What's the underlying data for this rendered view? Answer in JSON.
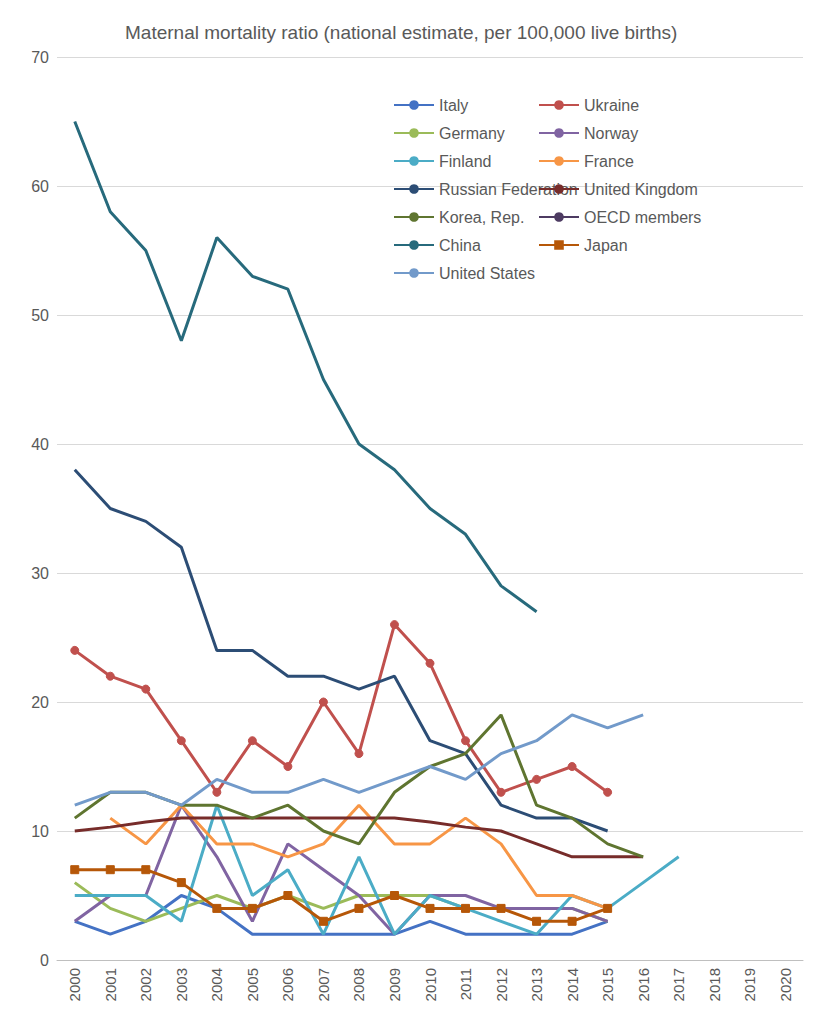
{
  "chart_data": {
    "type": "line",
    "title": "Maternal mortality ratio (national estimate, per 100,000 live births)",
    "categories": [
      "2000",
      "2001",
      "2002",
      "2003",
      "2004",
      "2005",
      "2006",
      "2007",
      "2008",
      "2009",
      "2010",
      "2011",
      "2012",
      "2013",
      "2014",
      "2015",
      "2016",
      "2017",
      "2018",
      "2019",
      "2020"
    ],
    "ylim": [
      0,
      70
    ],
    "yticks": [
      0,
      10,
      20,
      30,
      40,
      50,
      60,
      70
    ],
    "grid": true,
    "legend": "upper right",
    "series": [
      {
        "name": "Italy",
        "color": "#4472C4",
        "values": [
          3,
          2,
          3,
          5,
          4,
          2,
          2,
          2,
          2,
          2,
          3,
          2,
          2,
          2,
          2,
          3,
          null,
          null,
          null,
          null,
          null
        ]
      },
      {
        "name": "Ukraine",
        "color": "#C0504D",
        "marker": "circle",
        "values": [
          24,
          22,
          21,
          17,
          13,
          17,
          15,
          20,
          16,
          26,
          23,
          17,
          13,
          14,
          15,
          13,
          null,
          null,
          null,
          null,
          null
        ]
      },
      {
        "name": "Germany",
        "color": "#9BBB59",
        "values": [
          6,
          4,
          3,
          4,
          5,
          4,
          5,
          4,
          5,
          5,
          5,
          4,
          4,
          4,
          4,
          3,
          null,
          null,
          null,
          null,
          null
        ]
      },
      {
        "name": "Norway",
        "color": "#8064A2",
        "values": [
          3,
          5,
          5,
          12,
          8,
          3,
          9,
          7,
          5,
          2,
          5,
          5,
          4,
          4,
          4,
          3,
          null,
          null,
          null,
          null,
          null
        ]
      },
      {
        "name": "Finland",
        "color": "#4BACC6",
        "values": [
          5,
          5,
          5,
          3,
          12,
          5,
          7,
          2,
          8,
          2,
          5,
          4,
          3,
          2,
          5,
          4,
          6,
          8,
          null,
          null,
          null
        ]
      },
      {
        "name": "France",
        "color": "#F79646",
        "values": [
          null,
          11,
          9,
          12,
          9,
          9,
          8,
          9,
          12,
          9,
          9,
          11,
          9,
          5,
          5,
          4,
          null,
          null,
          null,
          null,
          null
        ]
      },
      {
        "name": "Russian Federation",
        "color": "#2C4D75",
        "values": [
          38,
          35,
          34,
          32,
          24,
          24,
          22,
          22,
          21,
          22,
          17,
          16,
          12,
          11,
          11,
          10,
          null,
          null,
          null,
          null,
          null
        ]
      },
      {
        "name": "United Kingdom",
        "color": "#772C2A",
        "values": [
          10,
          10.3,
          10.7,
          11,
          11,
          11,
          11,
          11,
          11,
          11,
          10.7,
          10.3,
          10,
          9,
          8,
          8,
          8,
          null,
          null,
          null,
          null
        ]
      },
      {
        "name": "Korea, Rep.",
        "color": "#5F7530",
        "values": [
          11,
          13,
          13,
          12,
          12,
          11,
          12,
          10,
          9,
          13,
          15,
          16,
          19,
          12,
          11,
          9,
          8,
          null,
          null,
          null,
          null
        ]
      },
      {
        "name": "OECD members",
        "color": "#4D3B62",
        "values": [
          null,
          null,
          null,
          null,
          null,
          null,
          null,
          null,
          null,
          null,
          null,
          null,
          null,
          null,
          null,
          null,
          null,
          null,
          null,
          null,
          null
        ]
      },
      {
        "name": "China",
        "color": "#276A7C",
        "values": [
          65,
          58,
          55,
          48,
          56,
          53,
          52,
          45,
          40,
          38,
          35,
          33,
          29,
          27,
          null,
          null,
          null,
          null,
          null,
          null,
          null
        ]
      },
      {
        "name": "Japan",
        "color": "#B65708",
        "marker": "square",
        "values": [
          7,
          7,
          7,
          6,
          4,
          4,
          5,
          3,
          4,
          5,
          4,
          4,
          4,
          3,
          3,
          4,
          null,
          null,
          null,
          null,
          null
        ]
      },
      {
        "name": "United States",
        "color": "#729ACA",
        "values": [
          12,
          13,
          13,
          12,
          14,
          13,
          13,
          14,
          13,
          14,
          15,
          14,
          16,
          17,
          19,
          18,
          19,
          null,
          null,
          null,
          null
        ]
      }
    ]
  }
}
